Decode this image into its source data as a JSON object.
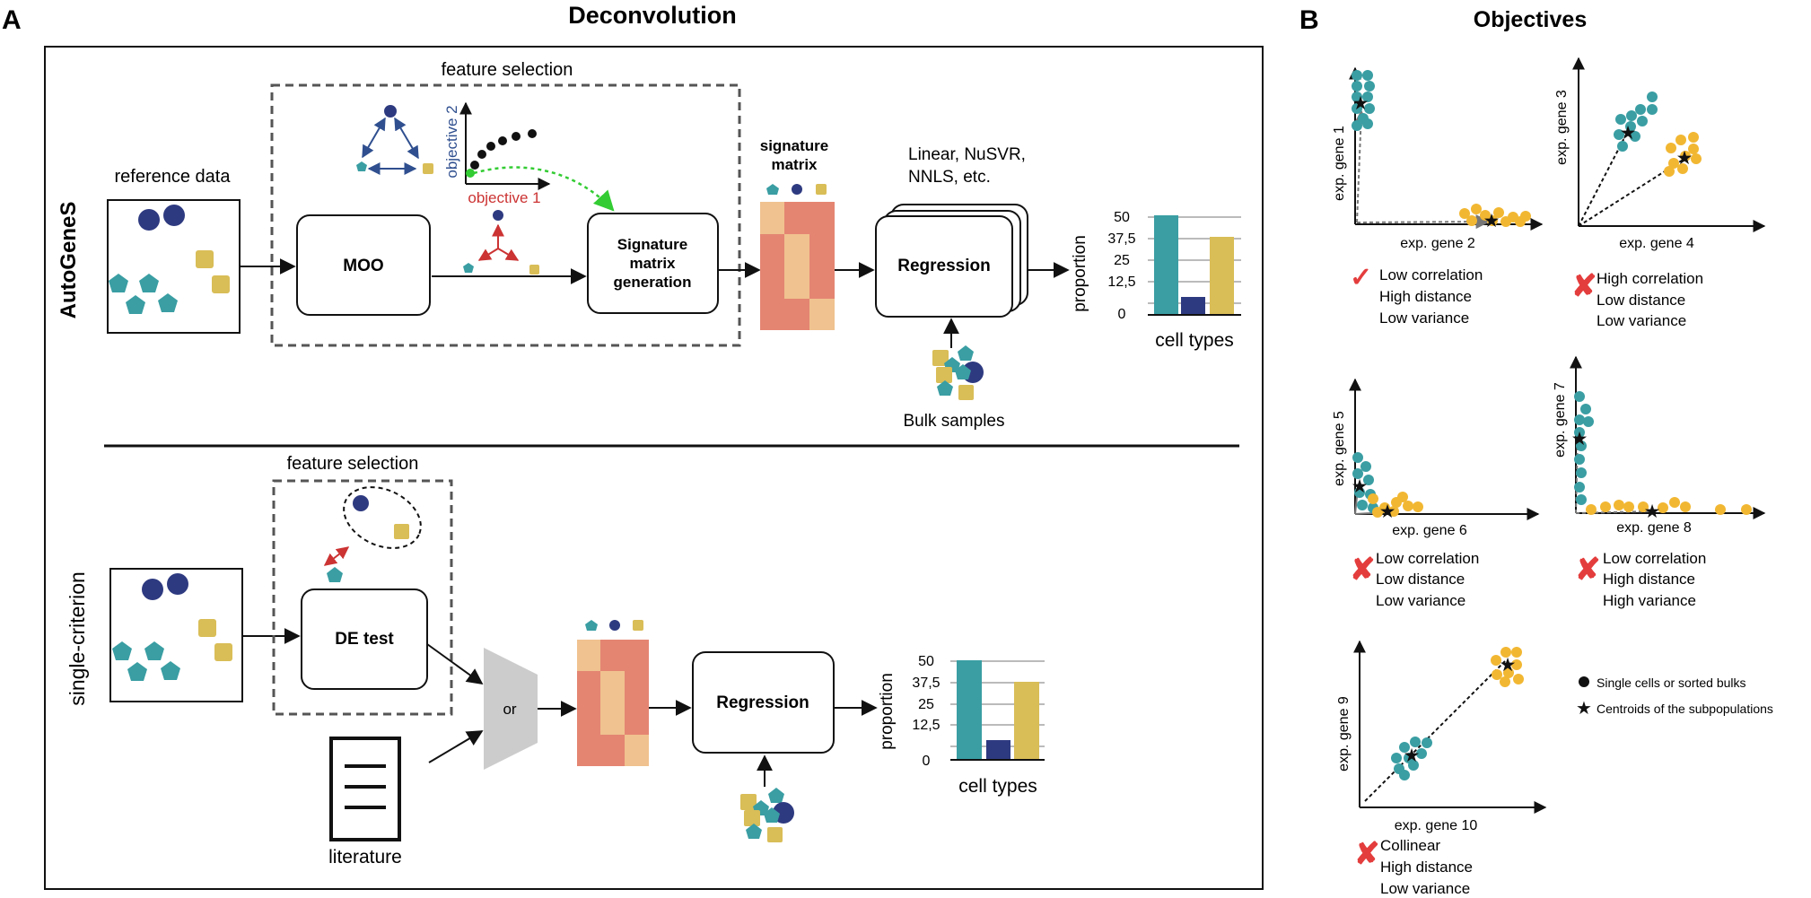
{
  "colors": {
    "teal": "#3a9ea3",
    "navy": "#2e3a80",
    "yellow": "#d9bd57",
    "orange_dot": "#f2b732",
    "salmon": "#e48572",
    "peach": "#f0c28f",
    "gray": "#cccccc",
    "red": "#cc3333",
    "red_mark": "#e43d3d",
    "green": "#33cc33",
    "blue_axis": "#2f4f8f"
  },
  "panel_a": {
    "letter": "A",
    "title": "Deconvolution",
    "top": {
      "method_label": "AutoGeneS",
      "reference_label": "reference data",
      "feature_selection_label": "feature selection",
      "moo_label": "MOO",
      "objective1_label": "objective 1",
      "objective2_label": "objective 2",
      "sigmat_gen_line1": "Signature",
      "sigmat_gen_line2": "matrix",
      "sigmat_gen_line3": "generation",
      "signature_matrix_line1": "signature",
      "signature_matrix_line2": "matrix",
      "regression_methods_line1": "Linear, NuSVR,",
      "regression_methods_line2": "NNLS, etc.",
      "regression_label": "Regression",
      "bulk_label": "Bulk samples",
      "proportion_label": "proportion",
      "cell_types_label": "cell types",
      "ticks": [
        "50",
        "37,5",
        "25",
        "12,5",
        "0"
      ]
    },
    "bottom": {
      "method_label": "single-criterion",
      "feature_selection_label": "feature selection",
      "de_test_label": "DE test",
      "or_label": "or",
      "literature_label": "literature",
      "regression_label": "Regression",
      "proportion_label": "proportion",
      "cell_types_label": "cell types",
      "ticks": [
        "50",
        "37,5",
        "25",
        "12,5",
        "0"
      ]
    }
  },
  "panel_b": {
    "letter": "B",
    "title": "Objectives",
    "plots": [
      {
        "x_label": "exp. gene 2",
        "y_label": "exp. gene 1",
        "mark": "check",
        "lines": [
          "Low correlation",
          "High distance",
          "Low variance"
        ]
      },
      {
        "x_label": "exp. gene 4",
        "y_label": "exp. gene 3",
        "mark": "cross",
        "lines": [
          "High correlation",
          "Low distance",
          "Low variance"
        ]
      },
      {
        "x_label": "exp. gene 6",
        "y_label": "exp. gene 5",
        "mark": "cross",
        "lines": [
          "Low correlation",
          "Low distance",
          "Low variance"
        ]
      },
      {
        "x_label": "exp. gene 8",
        "y_label": "exp. gene 7",
        "mark": "cross",
        "lines": [
          "Low correlation",
          "High distance",
          "High variance"
        ]
      },
      {
        "x_label": "exp. gene 10",
        "y_label": "exp. gene 9",
        "mark": "cross",
        "lines": [
          "Collinear",
          "High distance",
          "Low variance"
        ]
      }
    ],
    "legend": [
      {
        "symbol": "circle",
        "label": "Single cells or sorted bulks"
      },
      {
        "symbol": "star",
        "label": "Centroids of the subpopulations"
      }
    ]
  }
}
